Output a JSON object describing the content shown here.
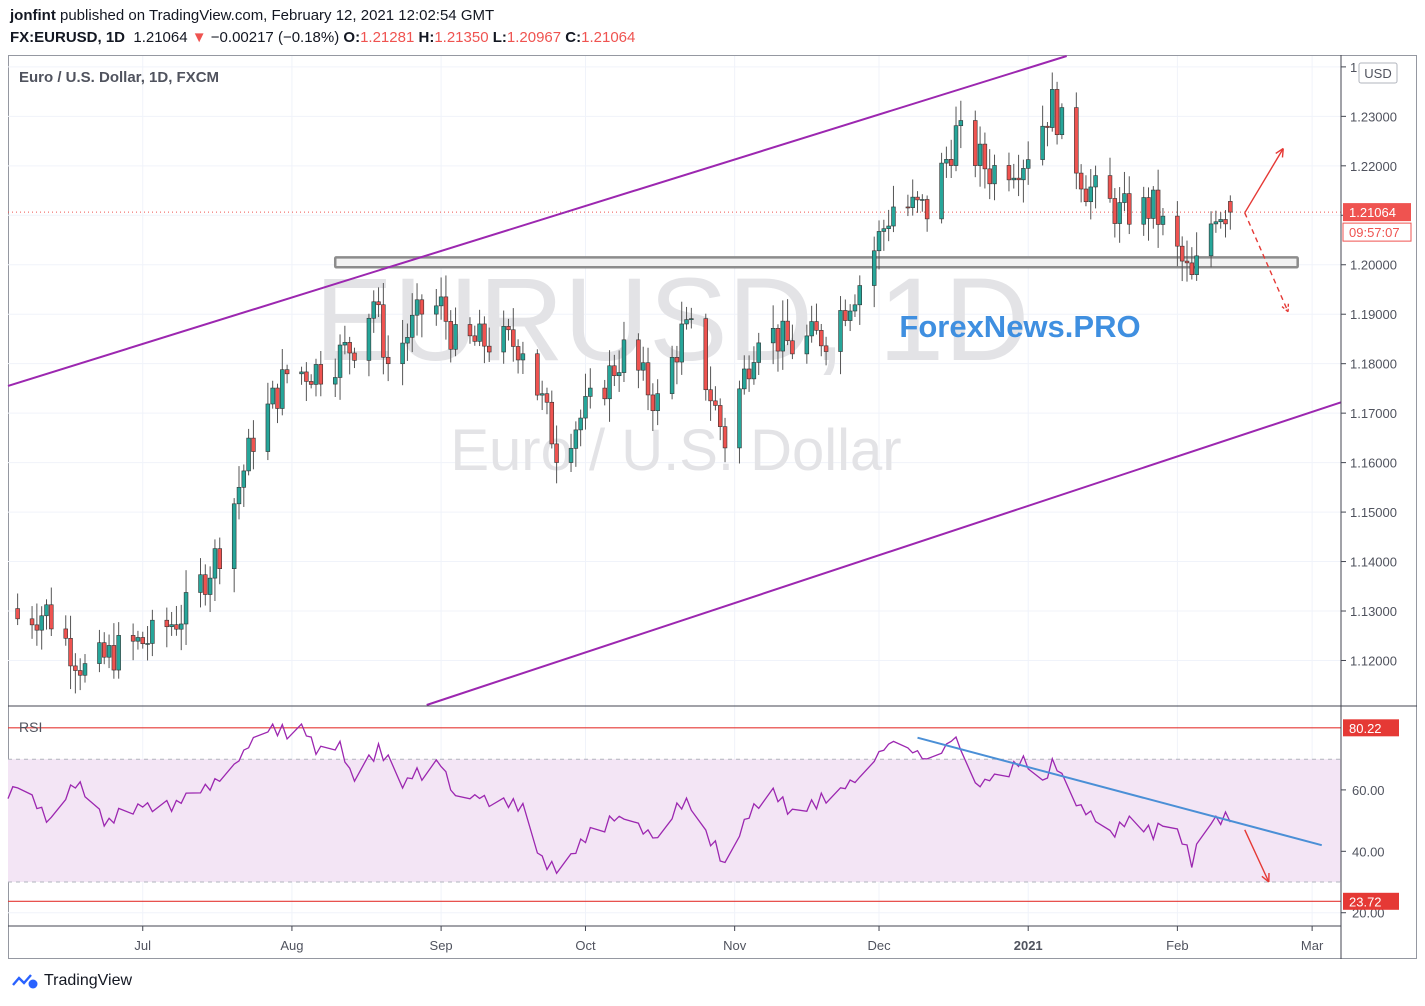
{
  "header": {
    "author": "jonfint",
    "published_text": " published on TradingView.com, February 12, 2021 12:02:54 GMT",
    "symbol": "FX:EURUSD, 1D",
    "last": "1.21064",
    "change_arrow": "▼",
    "change": "−0.00217 (−0.18%)",
    "o_label": "O:",
    "o": "1.21281",
    "h_label": "H:",
    "h": "1.21350",
    "l_label": "L:",
    "l": "1.20967",
    "c_label": "C:",
    "c": "1.21064"
  },
  "pane": {
    "title": "Euro / U.S. Dollar, 1D, FXCM",
    "watermark_symbol": "EURUSD, 1D",
    "watermark_name": "Euro / U.S. Dollar",
    "brand_overlay": "ForexNews.PRO",
    "currency": "USD",
    "last_price_tag": "1.21064",
    "countdown_tag": "09:57:07"
  },
  "rsi_pane": {
    "title": "RSI",
    "upper_tag": "80.22",
    "lower_tag": "23.72"
  },
  "footer": {
    "brand": "TradingView"
  },
  "colors": {
    "up": "#26a69a",
    "down": "#ef5350",
    "channel": "#9c27b0",
    "rsi_line": "#9c27b0",
    "rsi_band": "#f3e5f5",
    "trend": "#4a8fd6",
    "brand": "#3f8fe0"
  },
  "chart_data": [
    {
      "type": "candlestick",
      "title": "Euro / U.S. Dollar, 1D, FXCM",
      "ylim": [
        1.111,
        1.2422
      ],
      "y_ticks": [
        "1.12000",
        "1.13000",
        "1.14000",
        "1.15000",
        "1.16000",
        "1.17000",
        "1.18000",
        "1.19000",
        "1.20000",
        "1.21000",
        "1.22000",
        "1.23000",
        "1.24000"
      ],
      "x_ticks": [
        "Jul",
        "Aug",
        "Sep",
        "Oct",
        "Nov",
        "Dec",
        "2021",
        "Feb",
        "Mar"
      ],
      "x_range": [
        "2020-06-03",
        "2021-03-07"
      ],
      "grid": true,
      "series": [
        {
          "name": "EURUSD",
          "daily_close_anchors": [
            [
              "2020-06-05",
              1.1285
            ],
            [
              "2020-06-11",
              1.13
            ],
            [
              "2020-06-19",
              1.118
            ],
            [
              "2020-06-26",
              1.122
            ],
            [
              "2020-07-03",
              1.1245
            ],
            [
              "2020-07-10",
              1.13
            ],
            [
              "2020-07-17",
              1.1425
            ],
            [
              "2020-07-24",
              1.165
            ],
            [
              "2020-07-31",
              1.178
            ],
            [
              "2020-08-07",
              1.179
            ],
            [
              "2020-08-14",
              1.184
            ],
            [
              "2020-08-18",
              1.193
            ],
            [
              "2020-08-21",
              1.18
            ],
            [
              "2020-08-28",
              1.1905
            ],
            [
              "2020-09-01",
              1.1915
            ],
            [
              "2020-09-04",
              1.184
            ],
            [
              "2020-09-11",
              1.1845
            ],
            [
              "2020-09-18",
              1.184
            ],
            [
              "2020-09-25",
              1.163
            ],
            [
              "2020-10-02",
              1.1715
            ],
            [
              "2020-10-09",
              1.1825
            ],
            [
              "2020-10-16",
              1.172
            ],
            [
              "2020-10-21",
              1.186
            ],
            [
              "2020-10-23",
              1.186
            ],
            [
              "2020-10-30",
              1.1645
            ],
            [
              "2020-11-06",
              1.1875
            ],
            [
              "2020-11-13",
              1.1835
            ],
            [
              "2020-11-20",
              1.186
            ],
            [
              "2020-11-27",
              1.1965
            ],
            [
              "2020-12-04",
              1.212
            ],
            [
              "2020-12-11",
              1.211
            ],
            [
              "2020-12-17",
              1.2265
            ],
            [
              "2020-12-24",
              1.219
            ],
            [
              "2020-12-31",
              1.2215
            ],
            [
              "2021-01-06",
              1.2325
            ],
            [
              "2021-01-13",
              1.216
            ],
            [
              "2021-01-20",
              1.2105
            ],
            [
              "2021-01-27",
              1.2115
            ],
            [
              "2021-02-04",
              1.1965
            ],
            [
              "2021-02-09",
              1.2115
            ],
            [
              "2021-02-12",
              1.21064
            ]
          ]
        }
      ],
      "annotations": {
        "channel_upper": [
          [
            "2020-06-03",
            1.1755
          ],
          [
            "2021-01-09",
            1.2422
          ]
        ],
        "channel_lower": [
          [
            "2020-08-29",
            1.111
          ],
          [
            "2021-03-07",
            1.1722
          ]
        ],
        "support_zone": [
          1.1995,
          1.2015
        ],
        "projection_up": [
          [
            "2021-02-15",
            1.2105
          ],
          [
            "2021-02-23",
            1.2235
          ]
        ],
        "projection_down": [
          [
            "2021-02-15",
            1.2105
          ],
          [
            "2021-02-24",
            1.1905
          ]
        ],
        "last_price": 1.21064
      }
    },
    {
      "type": "line",
      "title": "RSI",
      "ylim": [
        16,
        87
      ],
      "y_ticks": [
        "20.00",
        "40.00",
        "60.00"
      ],
      "levels": [
        80.22,
        70,
        30,
        23.72
      ],
      "series": [
        {
          "name": "RSI",
          "anchors": [
            [
              "2020-06-03",
              58
            ],
            [
              "2020-06-05",
              63
            ],
            [
              "2020-06-12",
              50
            ],
            [
              "2020-06-17",
              63
            ],
            [
              "2020-06-23",
              50
            ],
            [
              "2020-06-30",
              55
            ],
            [
              "2020-07-07",
              55
            ],
            [
              "2020-07-14",
              60
            ],
            [
              "2020-07-20",
              67
            ],
            [
              "2020-07-24",
              77
            ],
            [
              "2020-07-28",
              81
            ],
            [
              "2020-07-31",
              78
            ],
            [
              "2020-08-03",
              81
            ],
            [
              "2020-08-06",
              72
            ],
            [
              "2020-08-11",
              75
            ],
            [
              "2020-08-14",
              63
            ],
            [
              "2020-08-19",
              73
            ],
            [
              "2020-08-24",
              63
            ],
            [
              "2020-09-01",
              68
            ],
            [
              "2020-09-04",
              58
            ],
            [
              "2020-09-11",
              57
            ],
            [
              "2020-09-18",
              55
            ],
            [
              "2020-09-22",
              37
            ],
            [
              "2020-09-25",
              33
            ],
            [
              "2020-10-02",
              46
            ],
            [
              "2020-10-09",
              52
            ],
            [
              "2020-10-16",
              44
            ],
            [
              "2020-10-21",
              56
            ],
            [
              "2020-10-23",
              54
            ],
            [
              "2020-10-30",
              36
            ],
            [
              "2020-11-04",
              52
            ],
            [
              "2020-11-09",
              60
            ],
            [
              "2020-11-13",
              52
            ],
            [
              "2020-11-20",
              58
            ],
            [
              "2020-11-27",
              64
            ],
            [
              "2020-12-01",
              72
            ],
            [
              "2020-12-04",
              76
            ],
            [
              "2020-12-11",
              70
            ],
            [
              "2020-12-17",
              77
            ],
            [
              "2020-12-21",
              61
            ],
            [
              "2020-12-24",
              63
            ],
            [
              "2020-12-29",
              67
            ],
            [
              "2020-12-31",
              70
            ],
            [
              "2021-01-04",
              63
            ],
            [
              "2021-01-06",
              69
            ],
            [
              "2021-01-12",
              55
            ],
            [
              "2021-01-18",
              45
            ],
            [
              "2021-01-22",
              50
            ],
            [
              "2021-01-27",
              46
            ],
            [
              "2021-01-29",
              49
            ],
            [
              "2021-02-02",
              44
            ],
            [
              "2021-02-04",
              37
            ],
            [
              "2021-02-05",
              40
            ],
            [
              "2021-02-08",
              49
            ],
            [
              "2021-02-10",
              51
            ],
            [
              "2021-02-12",
              50
            ]
          ]
        }
      ],
      "annotations": {
        "trendline": [
          [
            "2020-12-09",
            77
          ],
          [
            "2021-03-03",
            42
          ]
        ],
        "projection_down": [
          [
            "2021-02-15",
            47
          ],
          [
            "2021-02-20",
            30
          ]
        ]
      }
    }
  ]
}
